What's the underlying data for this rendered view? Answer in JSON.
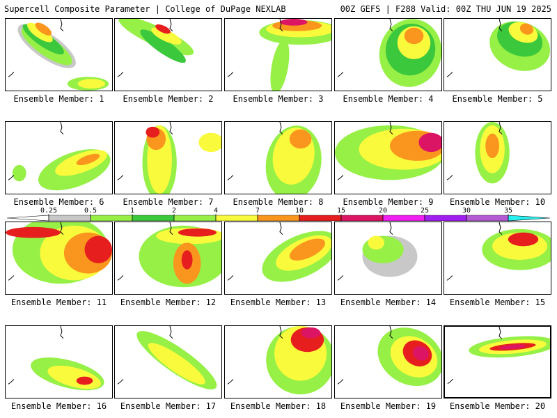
{
  "header": {
    "left": "Supercell Composite Parameter | College of DuPage NEXLAB",
    "right": "00Z GEFS | F288 Valid: 00Z THU JUN 19 2025"
  },
  "colors": {
    "gray": "#c8c8c8",
    "light_green": "#96f046",
    "green": "#3cc83c",
    "yellow": "#fafa3c",
    "orange": "#fa961e",
    "red": "#e61e1e",
    "crimson": "#dc1464",
    "magenta": "#f01ef0",
    "violet": "#a01ef0",
    "purple": "#b45ad2",
    "cyan": "#28f0f0"
  },
  "colorbar": {
    "ticks": [
      "0.25",
      "0.5",
      "1",
      "2",
      "4",
      "7",
      "10",
      "15",
      "20",
      "25",
      "30",
      "35"
    ]
  },
  "members": [
    {
      "label": "Ensemble Member: 1"
    },
    {
      "label": "Ensemble Member: 2"
    },
    {
      "label": "Ensemble Member: 3"
    },
    {
      "label": "Ensemble Member: 4"
    },
    {
      "label": "Ensemble Member: 5"
    },
    {
      "label": "Ensemble Member: 6"
    },
    {
      "label": "Ensemble Member: 7"
    },
    {
      "label": "Ensemble Member: 8"
    },
    {
      "label": "Ensemble Member: 9"
    },
    {
      "label": "Ensemble Member: 10"
    },
    {
      "label": "Ensemble Member: 11"
    },
    {
      "label": "Ensemble Member: 12"
    },
    {
      "label": "Ensemble Member: 13"
    },
    {
      "label": "Ensemble Member: 14"
    },
    {
      "label": "Ensemble Member: 15"
    },
    {
      "label": "Ensemble Member: 16"
    },
    {
      "label": "Ensemble Member: 17"
    },
    {
      "label": "Ensemble Member: 18"
    },
    {
      "label": "Ensemble Member: 19"
    },
    {
      "label": "Ensemble Member: 20"
    }
  ]
}
